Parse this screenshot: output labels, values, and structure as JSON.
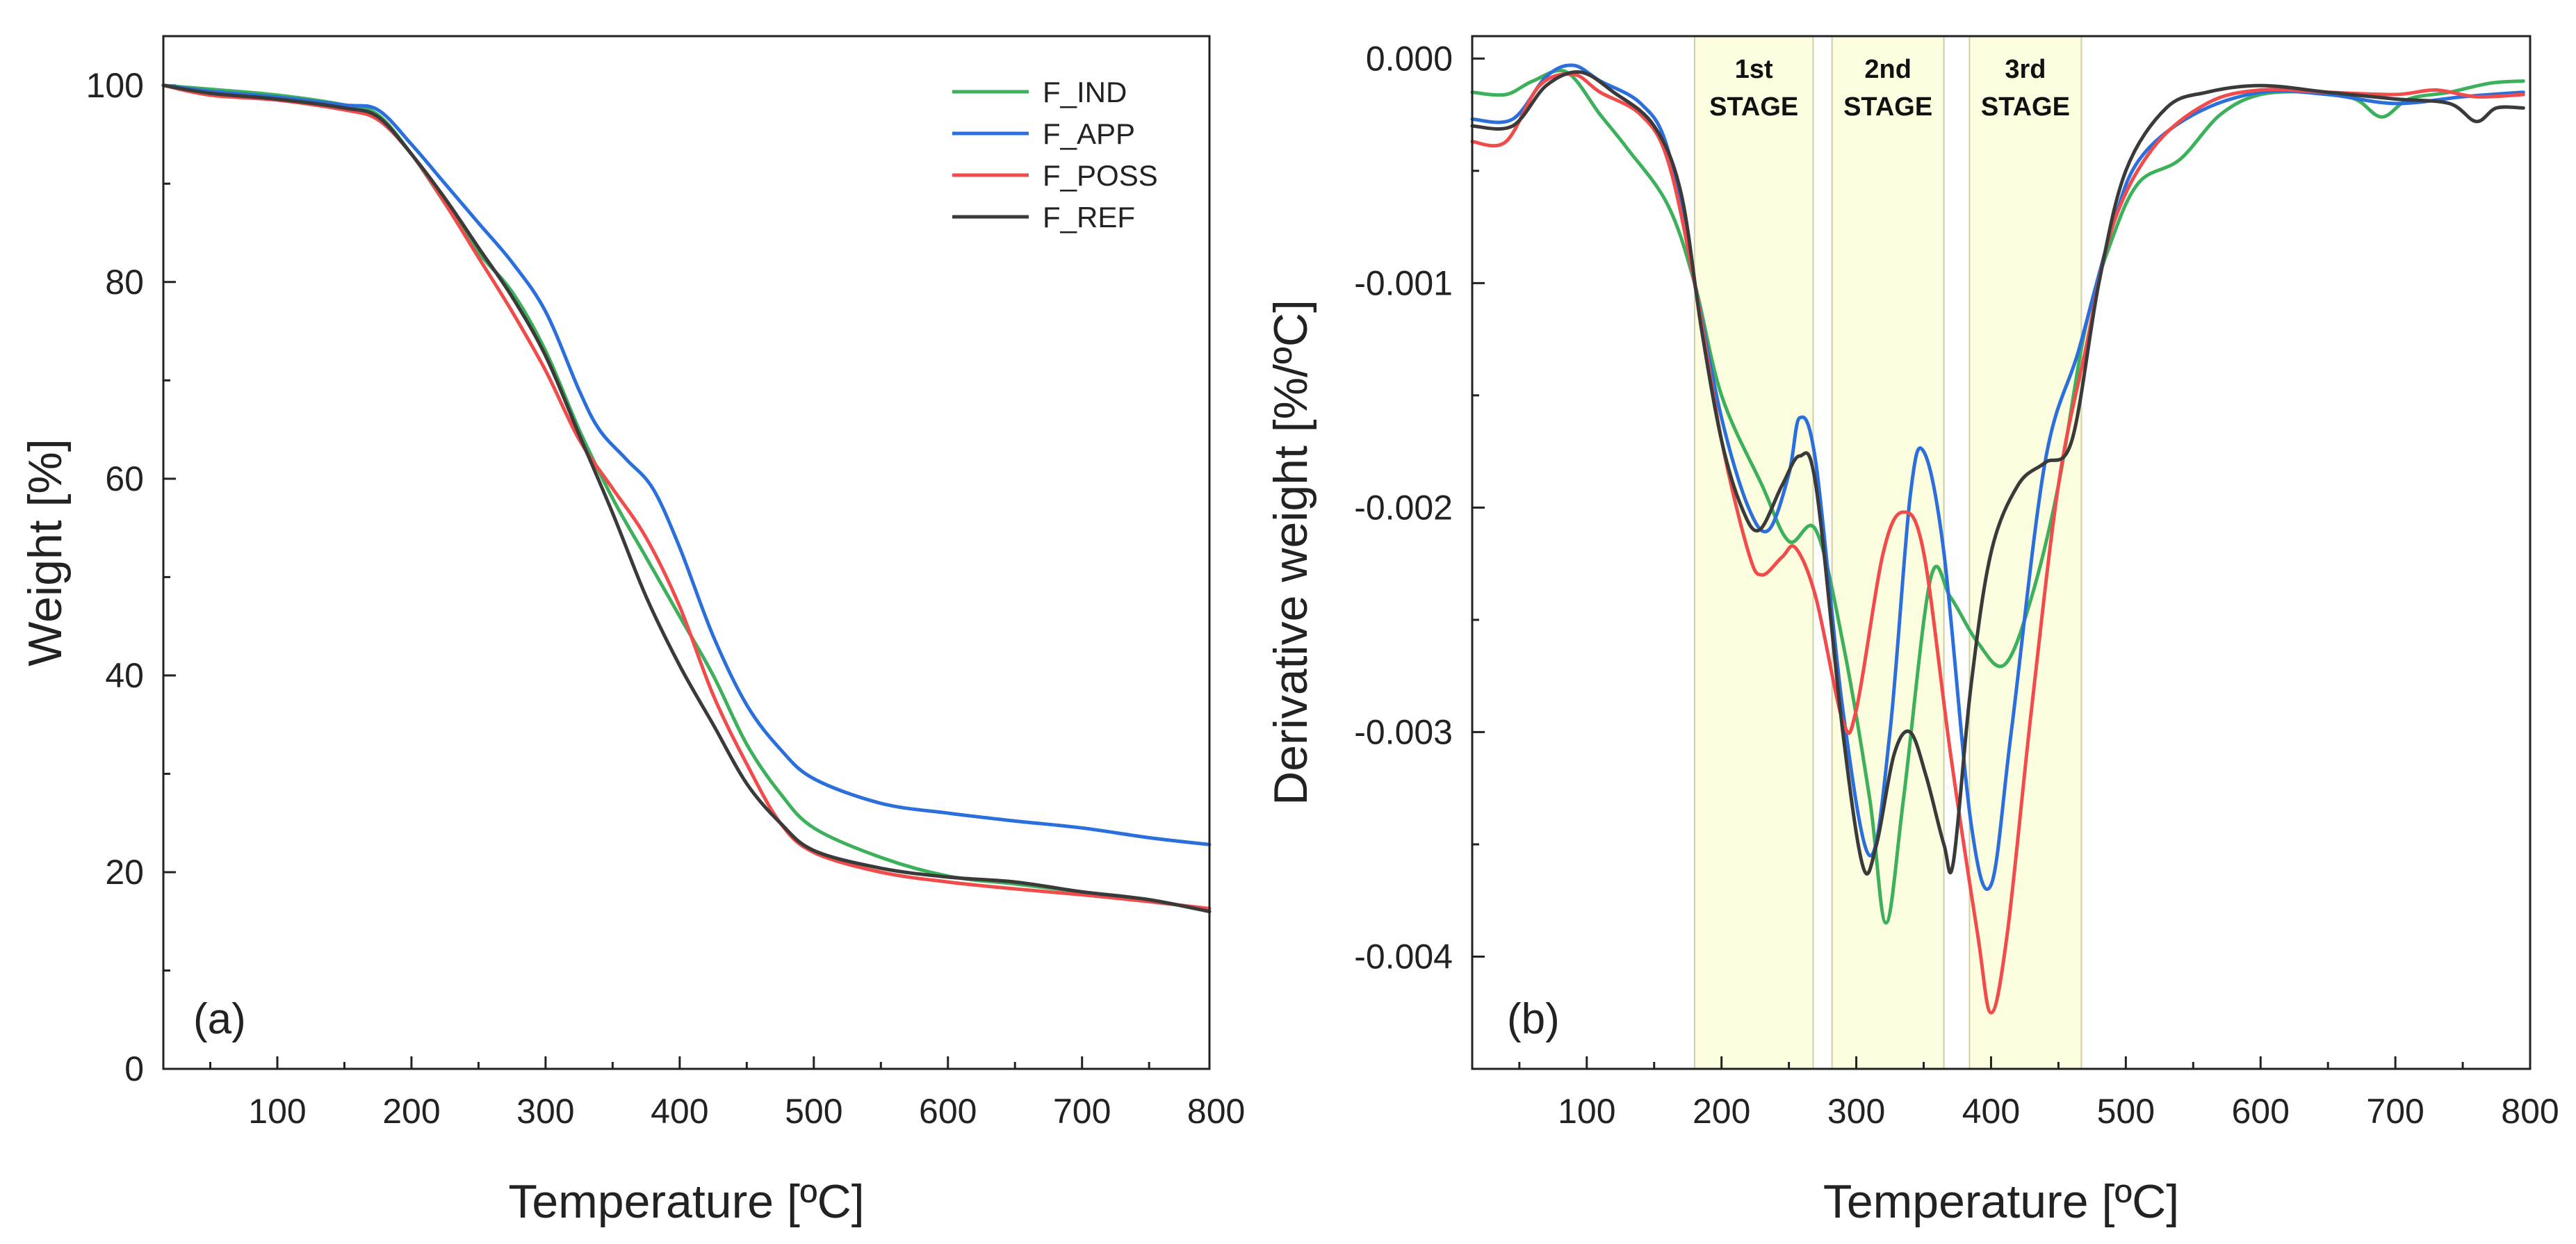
{
  "chart_data": [
    {
      "type": "line",
      "title": "",
      "panel_label": "(a)",
      "xlabel": "Temperature [ºC]",
      "ylabel": "Weight [%]",
      "xlim": [
        15,
        795
      ],
      "ylim": [
        0,
        105
      ],
      "xticks": [
        100,
        200,
        300,
        400,
        500,
        600,
        700,
        800
      ],
      "yticks": [
        0,
        20,
        40,
        60,
        80,
        100
      ],
      "legend_position": "top-right",
      "series": [
        {
          "name": "F_IND",
          "color": "#3cb05a",
          "points": [
            [
              15,
              100
            ],
            [
              50,
              99.6
            ],
            [
              100,
              99
            ],
            [
              150,
              98
            ],
            [
              175,
              97
            ],
            [
              200,
              93
            ],
            [
              225,
              88
            ],
            [
              250,
              83
            ],
            [
              275,
              79
            ],
            [
              300,
              73
            ],
            [
              325,
              65
            ],
            [
              350,
              58
            ],
            [
              375,
              52
            ],
            [
              400,
              46
            ],
            [
              425,
              40
            ],
            [
              450,
              33
            ],
            [
              475,
              28
            ],
            [
              500,
              24.5
            ],
            [
              550,
              21.5
            ],
            [
              600,
              19.6
            ],
            [
              650,
              18.8
            ],
            [
              700,
              18
            ],
            [
              750,
              17.2
            ],
            [
              795,
              16
            ]
          ]
        },
        {
          "name": "F_APP",
          "color": "#2a6fdb",
          "points": [
            [
              15,
              100
            ],
            [
              50,
              99.4
            ],
            [
              100,
              98.8
            ],
            [
              150,
              98
            ],
            [
              175,
              97.5
            ],
            [
              200,
              94
            ],
            [
              225,
              90
            ],
            [
              250,
              86
            ],
            [
              275,
              82
            ],
            [
              300,
              77
            ],
            [
              325,
              69
            ],
            [
              340,
              65
            ],
            [
              360,
              62
            ],
            [
              380,
              59
            ],
            [
              400,
              53
            ],
            [
              425,
              44
            ],
            [
              450,
              37
            ],
            [
              475,
              32.5
            ],
            [
              500,
              29.5
            ],
            [
              550,
              27
            ],
            [
              600,
              26
            ],
            [
              650,
              25.2
            ],
            [
              700,
              24.5
            ],
            [
              750,
              23.5
            ],
            [
              795,
              22.8
            ]
          ]
        },
        {
          "name": "F_POSS",
          "color": "#f24b4b",
          "points": [
            [
              15,
              100
            ],
            [
              50,
              99
            ],
            [
              100,
              98.5
            ],
            [
              150,
              97.5
            ],
            [
              175,
              96.5
            ],
            [
              200,
              93
            ],
            [
              225,
              88
            ],
            [
              250,
              82.5
            ],
            [
              275,
              77
            ],
            [
              300,
              71
            ],
            [
              325,
              64
            ],
            [
              350,
              59
            ],
            [
              375,
              54
            ],
            [
              400,
              47
            ],
            [
              425,
              38
            ],
            [
              450,
              31
            ],
            [
              475,
              25
            ],
            [
              500,
              22
            ],
            [
              550,
              20
            ],
            [
              600,
              19
            ],
            [
              650,
              18.3
            ],
            [
              700,
              17.7
            ],
            [
              750,
              17
            ],
            [
              795,
              16.3
            ]
          ]
        },
        {
          "name": "F_REF",
          "color": "#3a3a3a",
          "points": [
            [
              15,
              100
            ],
            [
              50,
              99.2
            ],
            [
              100,
              98.6
            ],
            [
              150,
              97.7
            ],
            [
              175,
              96.8
            ],
            [
              200,
              93
            ],
            [
              225,
              88.5
            ],
            [
              250,
              83.5
            ],
            [
              275,
              78.5
            ],
            [
              300,
              72.5
            ],
            [
              325,
              64.5
            ],
            [
              350,
              56.5
            ],
            [
              375,
              48
            ],
            [
              400,
              41
            ],
            [
              425,
              35
            ],
            [
              450,
              29
            ],
            [
              475,
              25
            ],
            [
              500,
              22.2
            ],
            [
              550,
              20.4
            ],
            [
              600,
              19.5
            ],
            [
              650,
              19
            ],
            [
              700,
              18
            ],
            [
              750,
              17.2
            ],
            [
              795,
              16
            ]
          ]
        }
      ]
    },
    {
      "type": "line",
      "title": "",
      "panel_label": "(b)",
      "xlabel": "Temperature [ºC]",
      "ylabel": "Derivative weight [%/ºC]",
      "xlim": [
        15,
        800
      ],
      "ylim": [
        -0.0045,
        0.0001
      ],
      "xticks": [
        100,
        200,
        300,
        400,
        500,
        600,
        700,
        800
      ],
      "yticks": [
        0.0,
        -0.001,
        -0.002,
        -0.003,
        -0.004
      ],
      "ytick_labels": [
        "0.000",
        "-0.001",
        "-0.002",
        "-0.003",
        "-0.004"
      ],
      "stage_bands": [
        {
          "label_line1": "1st",
          "label_line2": "STAGE",
          "range": [
            180,
            268
          ]
        },
        {
          "label_line1": "2nd",
          "label_line2": "STAGE",
          "range": [
            282,
            365
          ]
        },
        {
          "label_line1": "3rd",
          "label_line2": "STAGE",
          "range": [
            384,
            467
          ]
        }
      ],
      "series": [
        {
          "name": "F_IND",
          "color": "#3cb05a",
          "points": [
            [
              15,
              -0.00015
            ],
            [
              40,
              -0.00016
            ],
            [
              60,
              -0.0001
            ],
            [
              85,
              -6e-05
            ],
            [
              110,
              -0.00025
            ],
            [
              130,
              -0.0004
            ],
            [
              160,
              -0.00065
            ],
            [
              180,
              -0.001
            ],
            [
              200,
              -0.0015
            ],
            [
              230,
              -0.0019
            ],
            [
              250,
              -0.00215
            ],
            [
              270,
              -0.0021
            ],
            [
              290,
              -0.0026
            ],
            [
              310,
              -0.0033
            ],
            [
              322,
              -0.00385
            ],
            [
              335,
              -0.0033
            ],
            [
              355,
              -0.00232
            ],
            [
              370,
              -0.0024
            ],
            [
              390,
              -0.0026
            ],
            [
              410,
              -0.0027
            ],
            [
              430,
              -0.0024
            ],
            [
              450,
              -0.0019
            ],
            [
              470,
              -0.0012
            ],
            [
              490,
              -0.0008
            ],
            [
              510,
              -0.00055
            ],
            [
              540,
              -0.00045
            ],
            [
              570,
              -0.00025
            ],
            [
              600,
              -0.00016
            ],
            [
              640,
              -0.00015
            ],
            [
              670,
              -0.00018
            ],
            [
              690,
              -0.00026
            ],
            [
              710,
              -0.00018
            ],
            [
              740,
              -0.00015
            ],
            [
              770,
              -0.00011
            ],
            [
              795,
              -0.0001
            ]
          ]
        },
        {
          "name": "F_APP",
          "color": "#2a6fdb",
          "points": [
            [
              15,
              -0.00027
            ],
            [
              45,
              -0.00027
            ],
            [
              70,
              -8e-05
            ],
            [
              90,
              -3e-05
            ],
            [
              110,
              -0.0001
            ],
            [
              140,
              -0.0002
            ],
            [
              160,
              -0.0004
            ],
            [
              180,
              -0.001
            ],
            [
              200,
              -0.0016
            ],
            [
              220,
              -0.002
            ],
            [
              235,
              -0.0021
            ],
            [
              250,
              -0.00185
            ],
            [
              258,
              -0.0016
            ],
            [
              270,
              -0.0018
            ],
            [
              290,
              -0.0029
            ],
            [
              310,
              -0.00355
            ],
            [
              325,
              -0.003
            ],
            [
              340,
              -0.00195
            ],
            [
              350,
              -0.00175
            ],
            [
              365,
              -0.0022
            ],
            [
              385,
              -0.0034
            ],
            [
              400,
              -0.00368
            ],
            [
              415,
              -0.003
            ],
            [
              440,
              -0.0018
            ],
            [
              465,
              -0.0013
            ],
            [
              490,
              -0.00075
            ],
            [
              510,
              -0.00045
            ],
            [
              550,
              -0.00025
            ],
            [
              600,
              -0.00015
            ],
            [
              650,
              -0.00016
            ],
            [
              700,
              -0.0002
            ],
            [
              750,
              -0.00017
            ],
            [
              795,
              -0.00015
            ]
          ]
        },
        {
          "name": "F_POSS",
          "color": "#f24b4b",
          "points": [
            [
              15,
              -0.00037
            ],
            [
              40,
              -0.00037
            ],
            [
              65,
              -0.00012
            ],
            [
              90,
              -7e-05
            ],
            [
              110,
              -0.00015
            ],
            [
              140,
              -0.00025
            ],
            [
              160,
              -0.00045
            ],
            [
              180,
              -0.001
            ],
            [
              200,
              -0.0017
            ],
            [
              220,
              -0.0022
            ],
            [
              230,
              -0.0023
            ],
            [
              245,
              -0.00222
            ],
            [
              255,
              -0.00218
            ],
            [
              270,
              -0.0024
            ],
            [
              290,
              -0.00295
            ],
            [
              300,
              -0.0029
            ],
            [
              320,
              -0.0022
            ],
            [
              335,
              -0.00202
            ],
            [
              350,
              -0.0022
            ],
            [
              370,
              -0.0031
            ],
            [
              390,
              -0.0039
            ],
            [
              400,
              -0.00425
            ],
            [
              412,
              -0.0039
            ],
            [
              430,
              -0.0029
            ],
            [
              450,
              -0.0019
            ],
            [
              470,
              -0.0013
            ],
            [
              490,
              -0.00075
            ],
            [
              520,
              -0.0004
            ],
            [
              560,
              -0.0002
            ],
            [
              600,
              -0.00014
            ],
            [
              650,
              -0.00015
            ],
            [
              700,
              -0.00016
            ],
            [
              730,
              -0.00014
            ],
            [
              760,
              -0.00017
            ],
            [
              795,
              -0.00016
            ]
          ]
        },
        {
          "name": "F_REF",
          "color": "#3a3a3a",
          "points": [
            [
              15,
              -0.0003
            ],
            [
              45,
              -0.0003
            ],
            [
              70,
              -0.00012
            ],
            [
              95,
              -6e-05
            ],
            [
              120,
              -0.00015
            ],
            [
              150,
              -0.0003
            ],
            [
              170,
              -0.0006
            ],
            [
              185,
              -0.0012
            ],
            [
              200,
              -0.0017
            ],
            [
              215,
              -0.002
            ],
            [
              228,
              -0.0021
            ],
            [
              245,
              -0.0019
            ],
            [
              258,
              -0.00177
            ],
            [
              270,
              -0.0019
            ],
            [
              290,
              -0.003
            ],
            [
              305,
              -0.0036
            ],
            [
              315,
              -0.0035
            ],
            [
              328,
              -0.0031
            ],
            [
              340,
              -0.003
            ],
            [
              352,
              -0.0032
            ],
            [
              365,
              -0.0035
            ],
            [
              372,
              -0.00358
            ],
            [
              385,
              -0.0028
            ],
            [
              400,
              -0.0022
            ],
            [
              420,
              -0.0019
            ],
            [
              440,
              -0.0018
            ],
            [
              460,
              -0.0017
            ],
            [
              480,
              -0.001
            ],
            [
              500,
              -0.0005
            ],
            [
              530,
              -0.00022
            ],
            [
              560,
              -0.00015
            ],
            [
              600,
              -0.00012
            ],
            [
              650,
              -0.00015
            ],
            [
              700,
              -0.00018
            ],
            [
              740,
              -0.0002
            ],
            [
              760,
              -0.00028
            ],
            [
              775,
              -0.00022
            ],
            [
              795,
              -0.00022
            ]
          ]
        }
      ]
    }
  ]
}
